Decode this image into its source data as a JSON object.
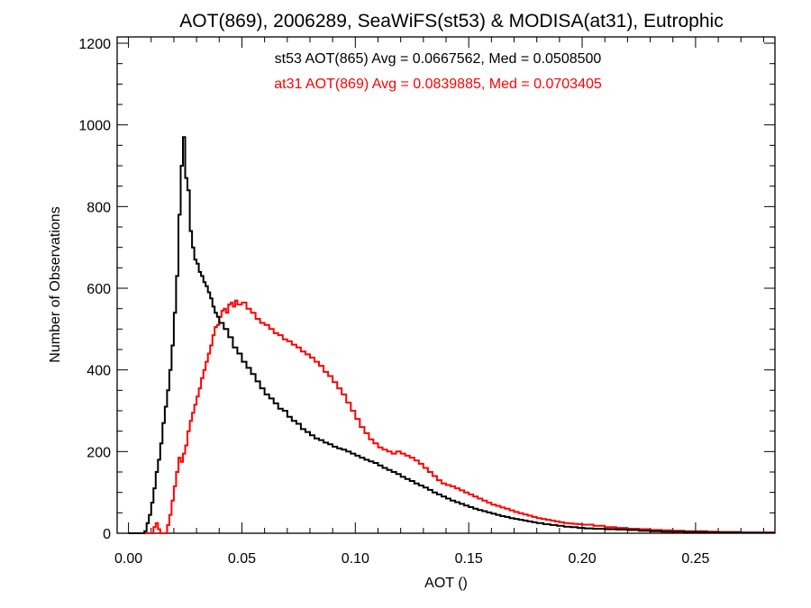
{
  "chart_data": {
    "type": "line",
    "style": "step-histogram",
    "title": "AOT(869), 2006289, SeaWiFS(st53) & MODISA(at31), Eutrophic",
    "xlabel": "AOT ()",
    "ylabel": "Number of Observations",
    "xlim": [
      -0.005,
      0.285
    ],
    "ylim": [
      0,
      1200
    ],
    "xticks": [
      0.0,
      0.05,
      0.1,
      0.15,
      0.2,
      0.25
    ],
    "xtick_labels": [
      "0.00",
      "0.05",
      "0.10",
      "0.15",
      "0.20",
      "0.25"
    ],
    "yticks": [
      0,
      200,
      400,
      600,
      800,
      1000,
      1200
    ],
    "ytick_labels": [
      "0",
      "200",
      "400",
      "600",
      "800",
      "1000",
      "1200"
    ],
    "grid": false,
    "annotations": [
      {
        "text": "st53 AOT(865) Avg = 0.0667562, Med = 0.0508500",
        "color": "#000000"
      },
      {
        "text": "at31 AOT(869) Avg = 0.0839885, Med = 0.0703405",
        "color": "#ff0000"
      }
    ],
    "series": [
      {
        "color": "#000000",
        "points": [
          [
            0.0,
            0
          ],
          [
            0.004,
            0
          ],
          [
            0.007,
            5
          ],
          [
            0.008,
            25
          ],
          [
            0.009,
            45
          ],
          [
            0.01,
            75
          ],
          [
            0.011,
            110
          ],
          [
            0.012,
            150
          ],
          [
            0.013,
            180
          ],
          [
            0.014,
            220
          ],
          [
            0.015,
            270
          ],
          [
            0.016,
            310
          ],
          [
            0.017,
            350
          ],
          [
            0.018,
            400
          ],
          [
            0.019,
            460
          ],
          [
            0.02,
            540
          ],
          [
            0.021,
            630
          ],
          [
            0.022,
            780
          ],
          [
            0.023,
            900
          ],
          [
            0.024,
            970
          ],
          [
            0.025,
            870
          ],
          [
            0.026,
            840
          ],
          [
            0.027,
            740
          ],
          [
            0.028,
            700
          ],
          [
            0.029,
            670
          ],
          [
            0.03,
            660
          ],
          [
            0.031,
            640
          ],
          [
            0.032,
            630
          ],
          [
            0.033,
            615
          ],
          [
            0.034,
            605
          ],
          [
            0.035,
            590
          ],
          [
            0.036,
            575
          ],
          [
            0.037,
            555
          ],
          [
            0.038,
            540
          ],
          [
            0.039,
            530
          ],
          [
            0.04,
            515
          ],
          [
            0.042,
            500
          ],
          [
            0.044,
            480
          ],
          [
            0.046,
            455
          ],
          [
            0.048,
            440
          ],
          [
            0.05,
            420
          ],
          [
            0.052,
            405
          ],
          [
            0.054,
            390
          ],
          [
            0.056,
            372
          ],
          [
            0.058,
            355
          ],
          [
            0.06,
            340
          ],
          [
            0.062,
            330
          ],
          [
            0.064,
            318
          ],
          [
            0.066,
            305
          ],
          [
            0.068,
            300
          ],
          [
            0.07,
            285
          ],
          [
            0.072,
            275
          ],
          [
            0.074,
            268
          ],
          [
            0.076,
            255
          ],
          [
            0.078,
            248
          ],
          [
            0.08,
            240
          ],
          [
            0.082,
            232
          ],
          [
            0.084,
            228
          ],
          [
            0.086,
            222
          ],
          [
            0.088,
            218
          ],
          [
            0.09,
            212
          ],
          [
            0.092,
            208
          ],
          [
            0.094,
            205
          ],
          [
            0.096,
            200
          ],
          [
            0.098,
            195
          ],
          [
            0.1,
            190
          ],
          [
            0.102,
            185
          ],
          [
            0.104,
            180
          ],
          [
            0.106,
            176
          ],
          [
            0.108,
            172
          ],
          [
            0.11,
            166
          ],
          [
            0.112,
            160
          ],
          [
            0.114,
            155
          ],
          [
            0.116,
            150
          ],
          [
            0.118,
            145
          ],
          [
            0.12,
            138
          ],
          [
            0.122,
            133
          ],
          [
            0.124,
            128
          ],
          [
            0.126,
            122
          ],
          [
            0.128,
            117
          ],
          [
            0.13,
            112
          ],
          [
            0.132,
            106
          ],
          [
            0.134,
            100
          ],
          [
            0.136,
            95
          ],
          [
            0.138,
            90
          ],
          [
            0.14,
            85
          ],
          [
            0.142,
            80
          ],
          [
            0.144,
            76
          ],
          [
            0.146,
            72
          ],
          [
            0.148,
            68
          ],
          [
            0.15,
            64
          ],
          [
            0.152,
            60
          ],
          [
            0.154,
            57
          ],
          [
            0.156,
            54
          ],
          [
            0.158,
            51
          ],
          [
            0.16,
            48
          ],
          [
            0.162,
            45
          ],
          [
            0.164,
            42
          ],
          [
            0.166,
            40
          ],
          [
            0.168,
            37
          ],
          [
            0.17,
            35
          ],
          [
            0.172,
            33
          ],
          [
            0.174,
            31
          ],
          [
            0.176,
            29
          ],
          [
            0.178,
            27
          ],
          [
            0.18,
            25
          ],
          [
            0.183,
            22
          ],
          [
            0.186,
            20
          ],
          [
            0.189,
            18
          ],
          [
            0.192,
            16
          ],
          [
            0.195,
            15
          ],
          [
            0.198,
            13
          ],
          [
            0.201,
            12
          ],
          [
            0.205,
            11
          ],
          [
            0.21,
            10
          ],
          [
            0.215,
            9
          ],
          [
            0.22,
            8
          ],
          [
            0.225,
            6
          ],
          [
            0.23,
            5
          ],
          [
            0.235,
            4
          ],
          [
            0.24,
            4
          ],
          [
            0.245,
            3
          ],
          [
            0.25,
            3
          ],
          [
            0.255,
            2
          ],
          [
            0.26,
            2
          ],
          [
            0.265,
            2
          ],
          [
            0.27,
            1
          ],
          [
            0.275,
            1
          ],
          [
            0.28,
            1
          ],
          [
            0.285,
            1
          ]
        ]
      },
      {
        "color": "#ff0000",
        "points": [
          [
            0.0,
            0
          ],
          [
            0.005,
            0
          ],
          [
            0.01,
            0
          ],
          [
            0.011,
            15
          ],
          [
            0.012,
            25
          ],
          [
            0.013,
            10
          ],
          [
            0.014,
            0
          ],
          [
            0.016,
            0
          ],
          [
            0.017,
            20
          ],
          [
            0.018,
            45
          ],
          [
            0.019,
            80
          ],
          [
            0.02,
            115
          ],
          [
            0.021,
            150
          ],
          [
            0.022,
            185
          ],
          [
            0.023,
            175
          ],
          [
            0.024,
            195
          ],
          [
            0.025,
            215
          ],
          [
            0.026,
            250
          ],
          [
            0.027,
            275
          ],
          [
            0.028,
            295
          ],
          [
            0.029,
            315
          ],
          [
            0.03,
            335
          ],
          [
            0.031,
            355
          ],
          [
            0.032,
            380
          ],
          [
            0.033,
            400
          ],
          [
            0.034,
            420
          ],
          [
            0.035,
            440
          ],
          [
            0.036,
            460
          ],
          [
            0.037,
            485
          ],
          [
            0.038,
            505
          ],
          [
            0.039,
            510
          ],
          [
            0.04,
            530
          ],
          [
            0.041,
            545
          ],
          [
            0.042,
            550
          ],
          [
            0.043,
            540
          ],
          [
            0.044,
            560
          ],
          [
            0.045,
            565
          ],
          [
            0.046,
            555
          ],
          [
            0.047,
            570
          ],
          [
            0.048,
            560
          ],
          [
            0.05,
            565
          ],
          [
            0.052,
            550
          ],
          [
            0.054,
            540
          ],
          [
            0.056,
            525
          ],
          [
            0.058,
            515
          ],
          [
            0.06,
            510
          ],
          [
            0.062,
            500
          ],
          [
            0.064,
            490
          ],
          [
            0.066,
            485
          ],
          [
            0.068,
            475
          ],
          [
            0.07,
            470
          ],
          [
            0.072,
            462
          ],
          [
            0.074,
            455
          ],
          [
            0.076,
            445
          ],
          [
            0.078,
            438
          ],
          [
            0.08,
            430
          ],
          [
            0.082,
            420
          ],
          [
            0.084,
            410
          ],
          [
            0.086,
            395
          ],
          [
            0.088,
            385
          ],
          [
            0.09,
            370
          ],
          [
            0.092,
            355
          ],
          [
            0.094,
            340
          ],
          [
            0.096,
            320
          ],
          [
            0.098,
            300
          ],
          [
            0.1,
            280
          ],
          [
            0.102,
            260
          ],
          [
            0.104,
            245
          ],
          [
            0.106,
            230
          ],
          [
            0.108,
            220
          ],
          [
            0.11,
            210
          ],
          [
            0.112,
            205
          ],
          [
            0.114,
            200
          ],
          [
            0.116,
            195
          ],
          [
            0.118,
            200
          ],
          [
            0.12,
            195
          ],
          [
            0.122,
            190
          ],
          [
            0.124,
            185
          ],
          [
            0.126,
            178
          ],
          [
            0.128,
            170
          ],
          [
            0.13,
            160
          ],
          [
            0.132,
            150
          ],
          [
            0.134,
            140
          ],
          [
            0.136,
            130
          ],
          [
            0.138,
            122
          ],
          [
            0.14,
            118
          ],
          [
            0.142,
            115
          ],
          [
            0.144,
            110
          ],
          [
            0.146,
            105
          ],
          [
            0.148,
            100
          ],
          [
            0.15,
            95
          ],
          [
            0.152,
            90
          ],
          [
            0.154,
            85
          ],
          [
            0.156,
            80
          ],
          [
            0.158,
            75
          ],
          [
            0.16,
            70
          ],
          [
            0.162,
            67
          ],
          [
            0.164,
            63
          ],
          [
            0.166,
            60
          ],
          [
            0.168,
            56
          ],
          [
            0.17,
            52
          ],
          [
            0.172,
            49
          ],
          [
            0.174,
            46
          ],
          [
            0.176,
            43
          ],
          [
            0.178,
            40
          ],
          [
            0.18,
            37
          ],
          [
            0.182,
            35
          ],
          [
            0.184,
            33
          ],
          [
            0.186,
            31
          ],
          [
            0.188,
            29
          ],
          [
            0.19,
            27
          ],
          [
            0.192,
            25
          ],
          [
            0.194,
            24
          ],
          [
            0.196,
            23
          ],
          [
            0.198,
            22
          ],
          [
            0.2,
            21
          ],
          [
            0.205,
            18
          ],
          [
            0.21,
            15
          ],
          [
            0.215,
            13
          ],
          [
            0.22,
            11
          ],
          [
            0.225,
            10
          ],
          [
            0.23,
            8
          ],
          [
            0.235,
            7
          ],
          [
            0.24,
            6
          ],
          [
            0.245,
            5
          ],
          [
            0.25,
            5
          ],
          [
            0.255,
            4
          ],
          [
            0.26,
            3
          ],
          [
            0.265,
            3
          ],
          [
            0.27,
            2
          ],
          [
            0.275,
            2
          ],
          [
            0.28,
            2
          ],
          [
            0.285,
            1
          ]
        ]
      }
    ]
  }
}
